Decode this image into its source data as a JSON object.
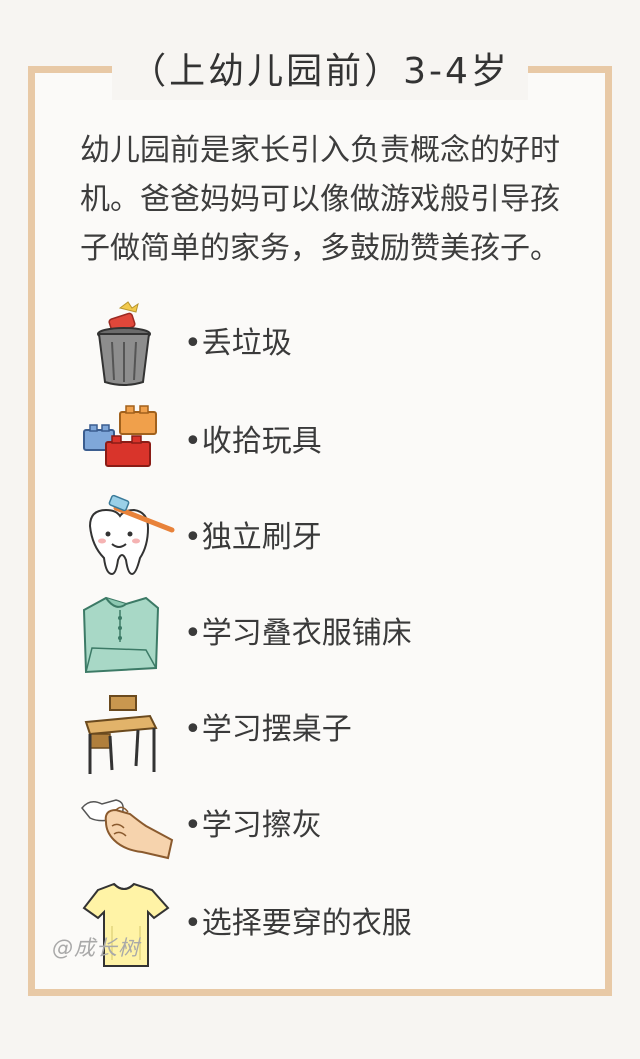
{
  "title": "（上幼儿园前）3-4岁",
  "intro_lines": [
    "幼儿园前是家长引入负责概念的好时",
    "机。爸爸妈妈可以像做游戏般引导孩",
    "子做简单的家务，多鼓励赞美孩子。"
  ],
  "chores": [
    {
      "label": "•丢垃圾",
      "icon": "trash-can-icon"
    },
    {
      "label": "•收拾玩具",
      "icon": "toy-blocks-icon"
    },
    {
      "label": "•独立刷牙",
      "icon": "tooth-brush-icon"
    },
    {
      "label": "•学习叠衣服铺床",
      "icon": "folded-shirt-icon"
    },
    {
      "label": "•学习摆桌子",
      "icon": "desk-chair-icon"
    },
    {
      "label": "•学习擦灰",
      "icon": "hand-cloth-icon"
    },
    {
      "label": "•选择要穿的衣服",
      "icon": "t-shirt-icon"
    }
  ],
  "watermark": "@成长树",
  "colors": {
    "frame": "#e8c9a6",
    "text": "#3a3a3a"
  }
}
